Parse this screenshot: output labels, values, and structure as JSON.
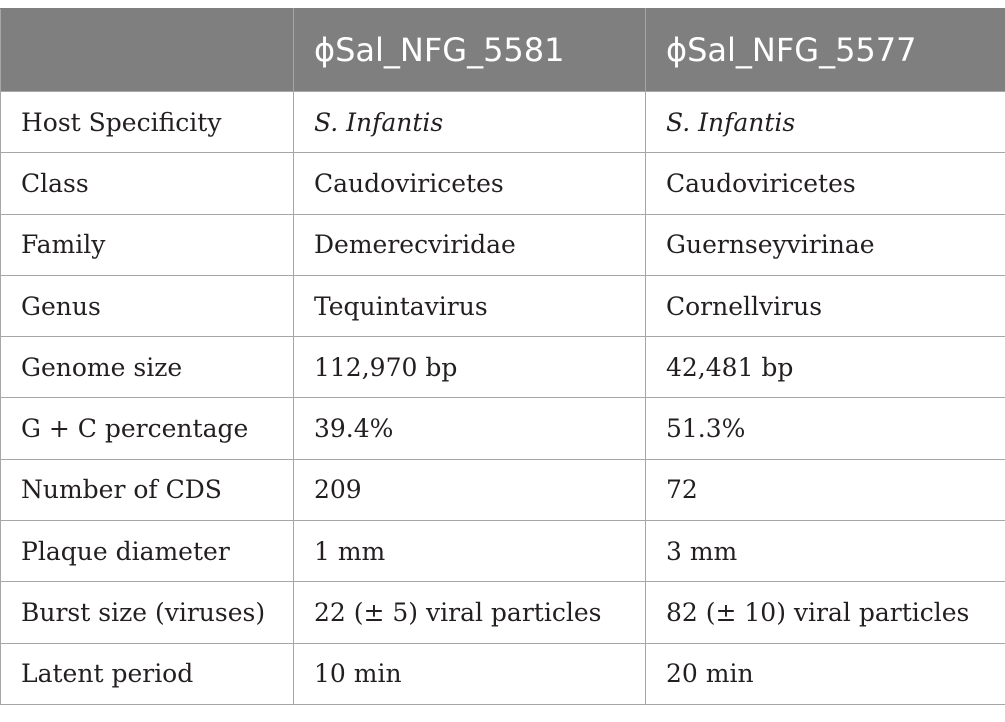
{
  "table": {
    "headers": [
      "",
      "ϕSal_NFG_5581",
      "ϕSal_NFG_5577"
    ],
    "rows": [
      {
        "label": "Host Specificity",
        "a": "S. Infantis",
        "b": "S. Infantis"
      },
      {
        "label": "Class",
        "a": "Caudoviricetes",
        "b": "Caudoviricetes"
      },
      {
        "label": "Family",
        "a": "Demerecviridae",
        "b": "Guernseyvirinae"
      },
      {
        "label": "Genus",
        "a": "Tequintavirus",
        "b": "Cornellvirus"
      },
      {
        "label": "Genome size",
        "a": "112,970 bp",
        "b": "42,481 bp"
      },
      {
        "label": "G + C percentage",
        "a": "39.4%",
        "b": "51.3%"
      },
      {
        "label": "Number of CDS",
        "a": "209",
        "b": "72"
      },
      {
        "label": "Plaque diameter",
        "a": "1 mm",
        "b": "3 mm"
      },
      {
        "label": "Burst size (viruses)",
        "a": "22 (± 5) viral particles",
        "b": "82 (± 10) viral particles"
      },
      {
        "label": "Latent period",
        "a": "10 min",
        "b": "20 min"
      }
    ]
  }
}
